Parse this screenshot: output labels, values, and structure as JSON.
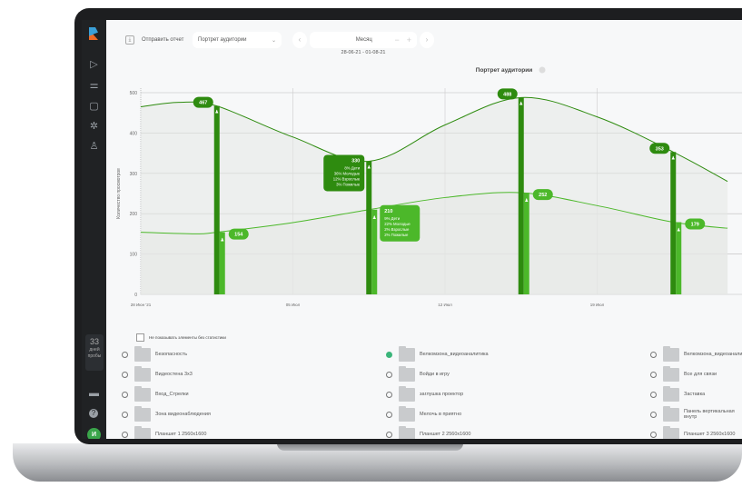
{
  "toolbar": {
    "send_report": "Отправить отчет",
    "report_select": "Портрет аудитории",
    "period": "Месяц",
    "date_range": "28-06-21 - 01-08-21"
  },
  "sidebar": {
    "trial_days": "33",
    "trial_label_1": "дней",
    "trial_label_2": "пробы",
    "avatar": "И",
    "icons": [
      "logo",
      "play-icon",
      "filter-icon",
      "document-icon",
      "loader-icon",
      "user-icon",
      "monitor-icon",
      "help-icon"
    ]
  },
  "colors": {
    "top_series": "#2e8b0f",
    "bottom_series": "#4cb82a",
    "background": "#f7f8f9"
  },
  "chart_data": {
    "type": "line",
    "title": "Портрет аудитории",
    "ylabel": "Количество просмотров",
    "ylim": [
      0,
      500
    ],
    "yticks": [
      "0",
      "100",
      "200",
      "300",
      "400",
      "500"
    ],
    "xticks": [
      {
        "date": "2021-06-28",
        "label": "28 Июн '21"
      },
      {
        "date": "2021-07-05",
        "label": "05 Июл"
      },
      {
        "date": "2021-07-12",
        "label": "12 Июл"
      },
      {
        "date": "2021-07-19",
        "label": "19 Июл"
      }
    ],
    "grid": true,
    "series": [
      {
        "points": [
          [
            "2021-06-28",
            465
          ],
          [
            "2021-06-29T18:00",
            476
          ],
          [
            "2021-07-01T12:00",
            467
          ],
          [
            "2021-07-05",
            390
          ],
          [
            "2021-07-08T12:00",
            330
          ],
          [
            "2021-07-12",
            420
          ],
          [
            "2021-07-15T12:00",
            488
          ],
          [
            "2021-07-19",
            440
          ],
          [
            "2021-07-22T12:00",
            353
          ],
          [
            "2021-07-25",
            280
          ]
        ]
      },
      {
        "points": [
          [
            "2021-06-28",
            154
          ],
          [
            "2021-06-30T12:00",
            150
          ],
          [
            "2021-07-01T12:00",
            154
          ],
          [
            "2021-07-05",
            178
          ],
          [
            "2021-07-08T12:00",
            210
          ],
          [
            "2021-07-12",
            240
          ],
          [
            "2021-07-15T12:00",
            252
          ],
          [
            "2021-07-19",
            220
          ],
          [
            "2021-07-22T12:00",
            179
          ],
          [
            "2021-07-25",
            164
          ]
        ]
      }
    ],
    "bars": [
      {
        "date": "2021-07-01T12:00",
        "top": 467,
        "bottom": 154
      },
      {
        "date": "2021-07-08T12:00",
        "top": 330,
        "bottom": 210
      },
      {
        "date": "2021-07-15T12:00",
        "top": 488,
        "bottom": 252
      },
      {
        "date": "2021-07-22T12:00",
        "top": 353,
        "bottom": 179
      }
    ],
    "labels": [
      "467",
      "154",
      "330",
      "210",
      "488",
      "252",
      "353",
      "179"
    ],
    "tooltips": [
      {
        "value": "330",
        "lines": [
          "8% Дети",
          "36% Молодые",
          "12% Взрослые",
          "3% Пожилые"
        ]
      },
      {
        "value": "210",
        "lines": [
          "9% Дети",
          "22% Молодые",
          "2% Взрослые",
          "2% Пожилые"
        ]
      }
    ]
  },
  "list": {
    "hide_empty_label": "Не показывать элементы без статистики",
    "items": [
      {
        "label": "Безопасность",
        "checked": false
      },
      {
        "label": "Велкомзона_видеоаналитика",
        "checked": true
      },
      {
        "label": "Велкомзона_видеоаналитика",
        "checked": false
      },
      {
        "label": "Видеостена 3x3",
        "checked": false
      },
      {
        "label": "Войди в игру",
        "checked": false
      },
      {
        "label": "Все для связи",
        "checked": false
      },
      {
        "label": "Вход_Стрелки",
        "checked": false
      },
      {
        "label": "заглушка проектор",
        "checked": false
      },
      {
        "label": "Заставка",
        "checked": false
      },
      {
        "label": "Зона видеонаблюдения",
        "checked": false
      },
      {
        "label": "Мелочь в приятно",
        "checked": false
      },
      {
        "label": "Панель вертикальная внутр",
        "checked": false
      },
      {
        "label": "Планшет 1 2560x1600",
        "checked": false
      },
      {
        "label": "Планшет 2 2560x1600",
        "checked": false
      },
      {
        "label": "Планшет 3 2560x1600",
        "checked": false
      }
    ]
  }
}
